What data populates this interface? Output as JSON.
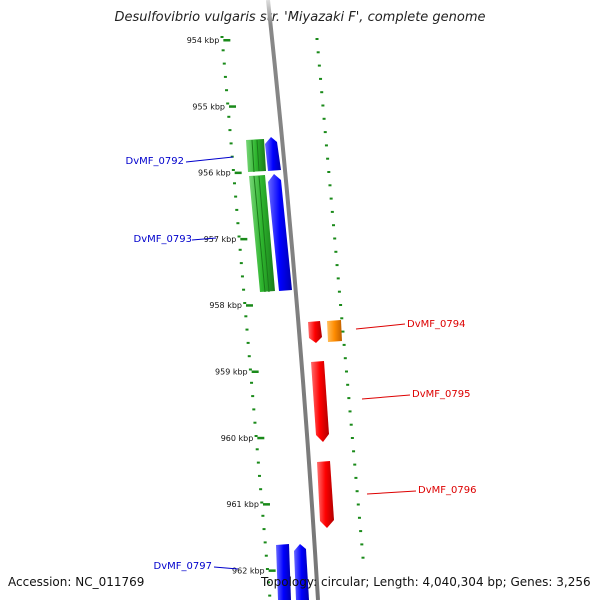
{
  "title": "Desulfovibrio vulgaris str. 'Miyazaki F', complete genome",
  "footer": {
    "accession": "Accession: NC_011769",
    "summary": "Topology: circular; Length: 4,040,304 bp; Genes: 3,256"
  },
  "colors": {
    "backbone": "#808080",
    "tick": "#1a8a1a",
    "forward_gene": "#0000ff",
    "forward_cds": "#2db52d",
    "reverse_gene": "#ff0000",
    "reverse_other": "#ff8c00",
    "forward_label": "#0000cc",
    "reverse_label": "#dd0000"
  },
  "ticks": [
    {
      "label": "954 kbp",
      "kb": 954
    },
    {
      "label": "955 kbp",
      "kb": 955
    },
    {
      "label": "956 kbp",
      "kb": 956
    },
    {
      "label": "957 kbp",
      "kb": 957
    },
    {
      "label": "958 kbp",
      "kb": 958
    },
    {
      "label": "959 kbp",
      "kb": 959
    },
    {
      "label": "960 kbp",
      "kb": 960
    },
    {
      "label": "961 kbp",
      "kb": 961
    },
    {
      "label": "962 kbp",
      "kb": 962
    }
  ],
  "labels": [
    {
      "text": "DvMF_0792",
      "strand": "forward"
    },
    {
      "text": "DvMF_0793",
      "strand": "forward"
    },
    {
      "text": "DvMF_0794",
      "strand": "reverse"
    },
    {
      "text": "DvMF_0795",
      "strand": "reverse"
    },
    {
      "text": "DvMF_0796",
      "strand": "reverse"
    },
    {
      "text": "DvMF_0797",
      "strand": "forward"
    }
  ]
}
